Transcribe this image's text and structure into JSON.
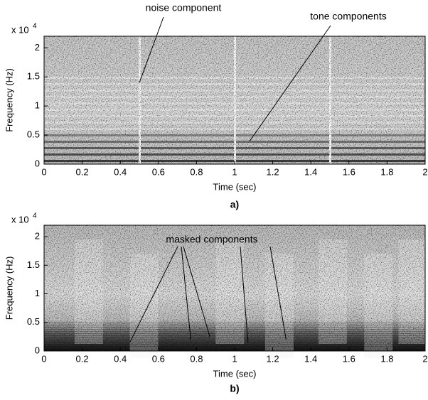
{
  "chart_data": [
    {
      "type": "spectrogram",
      "label": "a)",
      "x_label": "Time (sec)",
      "y_label": "Frequency (Hz)",
      "y_scale_base": "x 10",
      "y_scale_exponent": "4",
      "xlim": [
        0,
        2
      ],
      "xticks": [
        0,
        0.2,
        0.4,
        0.6,
        0.8,
        1,
        1.2,
        1.4,
        1.6,
        1.8,
        2
      ],
      "ylim": [
        0,
        2.2
      ],
      "yticks": [
        0,
        0.5,
        1,
        1.5,
        2
      ],
      "annotations": [
        {
          "text": "noise component",
          "points": [
            {
              "x": 0.5,
              "y": 1.4
            }
          ]
        },
        {
          "text": "tone components",
          "points": [
            {
              "x": 1.08,
              "y": 0.4
            }
          ]
        }
      ]
    },
    {
      "type": "spectrogram",
      "label": "b)",
      "x_label": "Time (sec)",
      "y_label": "Frequency (Hz)",
      "y_scale_base": "x 10",
      "y_scale_exponent": "4",
      "xlim": [
        0,
        2
      ],
      "xticks": [
        0,
        0.2,
        0.4,
        0.6,
        0.8,
        1,
        1.2,
        1.4,
        1.6,
        1.8,
        2
      ],
      "ylim": [
        0,
        2.2
      ],
      "yticks": [
        0,
        0.5,
        1,
        1.5,
        2
      ],
      "annotations": [
        {
          "text": "masked components",
          "points": [
            {
              "x": 0.45,
              "y": 0.15
            },
            {
              "x": 0.77,
              "y": 0.2
            },
            {
              "x": 0.87,
              "y": 0.25
            },
            {
              "x": 1.07,
              "y": 0.15
            },
            {
              "x": 1.27,
              "y": 0.2
            }
          ]
        }
      ]
    }
  ]
}
